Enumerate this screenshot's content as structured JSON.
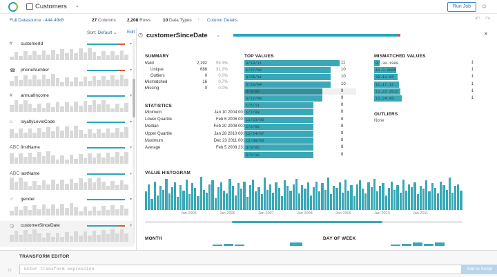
{
  "app": {
    "title": "Customers",
    "run_job": "Run Job"
  },
  "subbar": {
    "datasource": "Full Datasource - 444.49kB",
    "columns_num": "27",
    "columns_label": "Columns",
    "rows_num": "2,208",
    "rows_label": "Rows",
    "types_num": "10",
    "types_label": "Data Types",
    "column_details": "Column Details"
  },
  "sidebar": {
    "sort_label": "Sort:",
    "sort_value": "Default",
    "edit": "Edit",
    "columns": [
      {
        "name": "customerId",
        "icon": "#",
        "issue": true
      },
      {
        "name": "phoneNumber",
        "icon": "☎",
        "issue": true
      },
      {
        "name": "annualIncome",
        "icon": "#",
        "issue": false
      },
      {
        "name": "loyaltyLevelCode",
        "icon": "⌂",
        "issue": false
      },
      {
        "name": "firstName",
        "icon": "ABC",
        "issue": false
      },
      {
        "name": "lastName",
        "icon": "ABC",
        "issue": false
      },
      {
        "name": "gender",
        "icon": "♂",
        "issue": false
      },
      {
        "name": "customerSinceDate",
        "icon": "◷",
        "issue": true
      }
    ]
  },
  "detail": {
    "column_name": "customerSinceDate",
    "summary": {
      "heading": "SUMMARY",
      "rows": [
        {
          "label": "Valid",
          "value": "2,192",
          "pct": "99.3%",
          "dot": true,
          "indent": false
        },
        {
          "label": "Unique",
          "value": "688",
          "pct": "31.2%",
          "dot": false,
          "indent": true
        },
        {
          "label": "Outliers",
          "value": "0",
          "pct": "0.0%",
          "dot": false,
          "indent": true
        },
        {
          "label": "Mismatched",
          "value": "16",
          "pct": "0.7%",
          "dot": true,
          "indent": false
        },
        {
          "label": "Missing",
          "value": "0",
          "pct": "0.0%",
          "dot": true,
          "indent": false
        }
      ]
    },
    "statistics": {
      "heading": "STATISTICS",
      "rows": [
        {
          "label": "Minimum",
          "value": "Jan 10 2004 00:00"
        },
        {
          "label": "Lower Quartile",
          "value": "Feb 6 2006 00:00"
        },
        {
          "label": "Median",
          "value": "Feb 20 2008 00:00"
        },
        {
          "label": "Upper Quartile",
          "value": "Jan 28 2010 00:00"
        },
        {
          "label": "Maximum",
          "value": "Dec 23 2011 00:00"
        },
        {
          "label": "Average",
          "value": "Feb 5 2008 23:12"
        }
      ]
    },
    "top_values": {
      "heading": "TOP VALUES",
      "rows": [
        {
          "label": "3/18/11",
          "count": "11"
        },
        {
          "label": "1/27/06",
          "count": "10"
        },
        {
          "label": "8/25/11",
          "count": "10"
        },
        {
          "label": "5/23/04",
          "count": "10"
        },
        {
          "label": "3/5/05",
          "count": "9"
        },
        {
          "label": "3/12/08",
          "count": "9"
        },
        {
          "label": "1/5/11",
          "count": "8"
        },
        {
          "label": "1/7/09",
          "count": "8"
        },
        {
          "label": "11/23/06",
          "count": "8"
        },
        {
          "label": "1/2/08",
          "count": "8"
        },
        {
          "label": "12/24/07",
          "count": "8"
        },
        {
          "label": "12/30/05",
          "count": "8"
        },
        {
          "label": "3/8/05",
          "count": "8"
        },
        {
          "label": "5/6/10",
          "count": "8"
        }
      ]
    },
    "mismatched": {
      "heading": "MISMATCHED VALUES",
      "rows": [
        {
          "label": "07.30.1999",
          "count": "1"
        },
        {
          "label": "11.3.2005",
          "count": "1"
        },
        {
          "label": "20.11.05",
          "count": "1"
        },
        {
          "label": "11.17.11",
          "count": "1"
        },
        {
          "label": "11.22.2012",
          "count": "1"
        },
        {
          "label": "11.24.05",
          "count": "1"
        }
      ]
    },
    "outliers": {
      "heading": "OUTLIERS",
      "value": "None"
    },
    "histogram": {
      "heading": "VALUE HISTOGRAM",
      "ticks": [
        "Jan 2005",
        "Jan 2006",
        "Jan 2007",
        "Jan 2008",
        "Jan 2009",
        "Jan 2010",
        "Jan 2011"
      ]
    },
    "month_heading": "MONTH",
    "dow_heading": "DAY OF WEEK"
  },
  "chart_data": {
    "type": "bar",
    "title": "VALUE HISTOGRAM",
    "xlabel": "",
    "ylabel": "",
    "x_ticks": [
      "Jan 2005",
      "Jan 2006",
      "Jan 2007",
      "Jan 2008",
      "Jan 2009",
      "Jan 2010",
      "Jan 2011"
    ],
    "values": [
      20,
      28,
      12,
      31,
      16,
      26,
      22,
      34,
      18,
      25,
      30,
      14,
      27,
      21,
      33,
      17,
      29,
      24,
      15,
      36,
      22,
      19,
      28,
      32,
      13,
      25,
      30,
      21,
      18,
      34,
      26,
      16,
      29,
      23,
      31,
      14,
      27,
      33,
      20,
      25,
      17,
      35,
      22,
      28,
      19,
      30,
      24,
      15,
      32,
      26,
      21,
      28,
      34,
      18,
      27,
      23,
      30,
      16,
      25,
      31,
      20,
      29,
      22,
      35,
      17,
      26,
      24,
      30,
      19,
      33,
      21,
      27,
      15,
      28,
      32,
      23,
      18,
      30,
      25,
      34,
      20,
      26,
      29,
      16,
      24,
      31,
      22,
      27,
      19,
      33,
      21,
      28,
      25,
      30,
      17,
      26,
      23,
      32,
      20,
      29,
      24,
      18,
      31,
      27,
      22,
      35,
      19,
      26,
      28,
      21
    ]
  },
  "transform": {
    "label": "TRANSFORM EDITOR",
    "placeholder": "Enter transform expression",
    "add_button": "Add to Script"
  },
  "colors": {
    "accent": "#3aa8b6",
    "link": "#2f6fae",
    "error": "#d6563c"
  }
}
